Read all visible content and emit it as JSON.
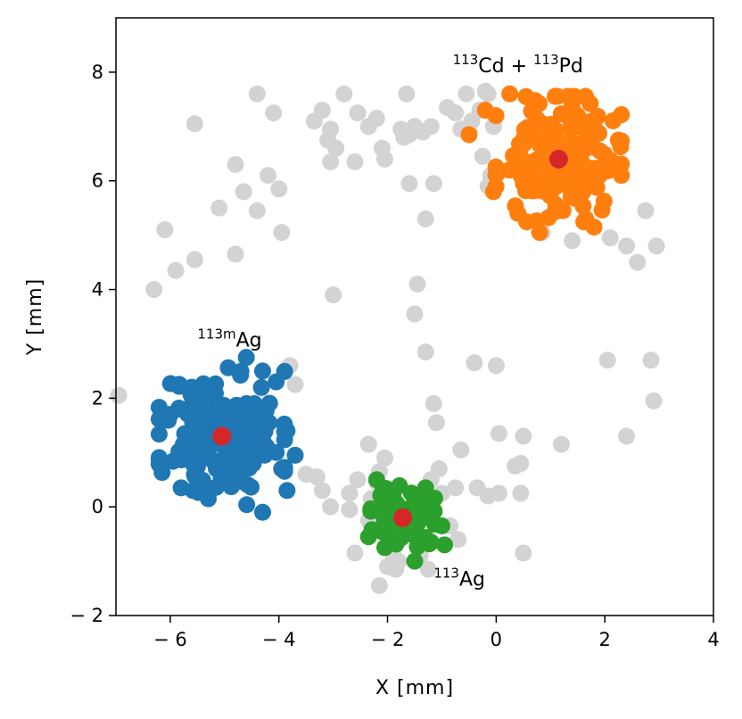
{
  "chart_data": {
    "type": "scatter",
    "title": "",
    "xlabel": "X [mm]",
    "ylabel": "Y [mm]",
    "xlim": [
      -7,
      4
    ],
    "ylim": [
      -2,
      9
    ],
    "xticks": [
      -6,
      -4,
      -2,
      0,
      2,
      4
    ],
    "yticks": [
      -2,
      0,
      2,
      4,
      6,
      8
    ],
    "xtick_labels": [
      "− 6",
      "− 4",
      "− 2",
      "0",
      "2",
      "4"
    ],
    "ytick_labels": [
      "− 2",
      "0",
      "2",
      "4",
      "6",
      "8"
    ],
    "grid": false,
    "colors": {
      "background_points": "#d3d3d3",
      "ag113m": "#1f77b4",
      "cd113_pd113": "#ff7f0e",
      "ag113": "#2ca02c",
      "centroid": "#d62728"
    },
    "background_points": [
      [
        -6.95,
        2.05
      ],
      [
        -6.3,
        4.0
      ],
      [
        -6.1,
        5.1
      ],
      [
        -5.9,
        4.35
      ],
      [
        -5.55,
        4.55
      ],
      [
        -5.55,
        7.05
      ],
      [
        -5.1,
        5.5
      ],
      [
        -4.8,
        4.65
      ],
      [
        -4.8,
        6.3
      ],
      [
        -4.65,
        5.8
      ],
      [
        -4.4,
        5.45
      ],
      [
        -4.4,
        7.6
      ],
      [
        -4.2,
        6.1
      ],
      [
        -4.1,
        7.25
      ],
      [
        -4.0,
        5.85
      ],
      [
        -3.95,
        5.05
      ],
      [
        -3.8,
        2.6
      ],
      [
        -3.7,
        2.25
      ],
      [
        -3.35,
        7.1
      ],
      [
        -3.2,
        7.3
      ],
      [
        -3.1,
        6.75
      ],
      [
        -3.05,
        6.95
      ],
      [
        -3.05,
        6.35
      ],
      [
        -2.95,
        6.6
      ],
      [
        -2.8,
        7.6
      ],
      [
        -2.6,
        6.35
      ],
      [
        -2.55,
        7.25
      ],
      [
        -2.35,
        7.0
      ],
      [
        -2.2,
        7.15
      ],
      [
        -2.1,
        6.6
      ],
      [
        -2.05,
        6.4
      ],
      [
        -1.75,
        6.95
      ],
      [
        -1.7,
        6.8
      ],
      [
        -1.65,
        7.6
      ],
      [
        -1.6,
        6.85
      ],
      [
        -1.5,
        7.0
      ],
      [
        -1.35,
        6.9
      ],
      [
        -1.2,
        7.0
      ],
      [
        -1.6,
        5.95
      ],
      [
        -1.3,
        5.3
      ],
      [
        -1.15,
        5.95
      ],
      [
        -0.9,
        7.35
      ],
      [
        -0.75,
        7.25
      ],
      [
        -0.65,
        6.95
      ],
      [
        -0.5,
        6.9
      ],
      [
        -0.3,
        7.3
      ],
      [
        -0.15,
        7.6
      ],
      [
        -0.25,
        6.45
      ],
      [
        0.0,
        6.25
      ],
      [
        -0.1,
        6.1
      ],
      [
        -0.15,
        5.9
      ],
      [
        -0.05,
        7.0
      ],
      [
        -0.45,
        7.1
      ],
      [
        -0.55,
        7.6
      ],
      [
        -0.2,
        7.65
      ],
      [
        -1.45,
        4.1
      ],
      [
        -1.5,
        3.55
      ],
      [
        -1.3,
        2.85
      ],
      [
        -3.5,
        0.6
      ],
      [
        -3.3,
        0.55
      ],
      [
        -3.2,
        0.3
      ],
      [
        -3.05,
        0.0
      ],
      [
        -2.7,
        0.25
      ],
      [
        -2.7,
        -0.05
      ],
      [
        -2.55,
        0.5
      ],
      [
        -2.35,
        1.15
      ],
      [
        -2.35,
        -0.25
      ],
      [
        -2.3,
        0.15
      ],
      [
        -2.2,
        0.45
      ],
      [
        -2.15,
        0.65
      ],
      [
        -2.05,
        0.9
      ],
      [
        -1.95,
        -0.35
      ],
      [
        -1.9,
        -0.85
      ],
      [
        -1.85,
        -1.15
      ],
      [
        -1.8,
        -1.0
      ],
      [
        -2.0,
        -1.1
      ],
      [
        -2.15,
        -1.45
      ],
      [
        -1.4,
        -0.9
      ],
      [
        -1.25,
        -1.15
      ],
      [
        -1.2,
        0.5
      ],
      [
        -1.1,
        1.55
      ],
      [
        -1.15,
        1.9
      ],
      [
        -1.05,
        0.7
      ],
      [
        -1.0,
        0.25
      ],
      [
        -0.85,
        -0.35
      ],
      [
        -0.75,
        0.35
      ],
      [
        -0.65,
        1.05
      ],
      [
        -0.4,
        2.65
      ],
      [
        0.0,
        2.6
      ],
      [
        -0.35,
        0.35
      ],
      [
        -0.15,
        0.2
      ],
      [
        0.05,
        0.25
      ],
      [
        0.05,
        1.35
      ],
      [
        0.35,
        0.75
      ],
      [
        0.45,
        0.25
      ],
      [
        0.5,
        1.3
      ],
      [
        0.45,
        0.8
      ],
      [
        0.5,
        -0.85
      ],
      [
        -0.7,
        -0.6
      ],
      [
        -2.6,
        -0.85
      ],
      [
        1.2,
        1.15
      ],
      [
        0.85,
        5.05
      ],
      [
        1.4,
        4.9
      ],
      [
        1.8,
        5.15
      ],
      [
        2.05,
        2.7
      ],
      [
        2.4,
        1.3
      ],
      [
        2.4,
        4.8
      ],
      [
        2.6,
        4.5
      ],
      [
        2.75,
        5.45
      ],
      [
        2.85,
        2.7
      ],
      [
        2.9,
        1.95
      ],
      [
        2.95,
        4.8
      ],
      [
        2.1,
        4.95
      ],
      [
        -3.0,
        3.9
      ]
    ],
    "clusters": [
      {
        "key": "ag113m",
        "centroid": [
          -5.05,
          1.3
        ],
        "spread": [
          0.55,
          0.6
        ],
        "count": 170,
        "seed": 11,
        "extra_points": [
          [
            -4.6,
            2.75
          ],
          [
            -4.3,
            2.5
          ],
          [
            -4.05,
            2.3
          ],
          [
            -5.8,
            0.35
          ],
          [
            -5.3,
            0.15
          ],
          [
            -4.3,
            -0.1
          ],
          [
            -3.85,
            0.3
          ],
          [
            -3.7,
            0.95
          ],
          [
            -3.85,
            1.4
          ],
          [
            -4.05,
            1.0
          ],
          [
            -6.0,
            1.7
          ],
          [
            -5.6,
            2.2
          ],
          [
            -4.8,
            0.6
          ],
          [
            -3.95,
            0.7
          ]
        ]
      },
      {
        "key": "cd113_pd113",
        "centroid": [
          1.15,
          6.4
        ],
        "spread": [
          0.55,
          0.55
        ],
        "count": 150,
        "seed": 23,
        "extra_points": [
          [
            -0.5,
            6.85
          ],
          [
            -0.2,
            7.3
          ],
          [
            0.25,
            7.6
          ],
          [
            0.55,
            7.55
          ],
          [
            1.5,
            7.2
          ],
          [
            2.25,
            6.75
          ],
          [
            2.3,
            6.3
          ],
          [
            1.8,
            5.15
          ],
          [
            0.8,
            5.05
          ],
          [
            -0.05,
            5.8
          ],
          [
            1.65,
            5.3
          ],
          [
            0.4,
            5.4
          ]
        ]
      },
      {
        "key": "ag113",
        "centroid": [
          -1.72,
          -0.2
        ],
        "spread": [
          0.28,
          0.28
        ],
        "count": 45,
        "seed": 37,
        "extra_points": [
          [
            -2.2,
            0.5
          ],
          [
            -2.35,
            -0.55
          ],
          [
            -1.5,
            -1.0
          ],
          [
            -1.3,
            0.35
          ],
          [
            -1.0,
            -0.35
          ],
          [
            -2.05,
            -0.75
          ],
          [
            -1.2,
            -0.65
          ],
          [
            -0.95,
            -0.7
          ]
        ]
      }
    ],
    "annotations": [
      {
        "key": "ag113m",
        "parts": [
          {
            "text": "113m",
            "sup": true
          },
          {
            "text": "Ag",
            "sup": false
          }
        ],
        "x": -5.5,
        "y": 2.95
      },
      {
        "key": "cd113_pd113",
        "parts": [
          {
            "text": "113",
            "sup": true
          },
          {
            "text": "Cd + ",
            "sup": false
          },
          {
            "text": "113",
            "sup": true
          },
          {
            "text": "Pd",
            "sup": false
          }
        ],
        "x": -0.8,
        "y": 8.0
      },
      {
        "key": "ag113",
        "parts": [
          {
            "text": "113",
            "sup": true
          },
          {
            "text": "Ag",
            "sup": false
          }
        ],
        "x": -1.15,
        "y": -1.45
      }
    ]
  }
}
